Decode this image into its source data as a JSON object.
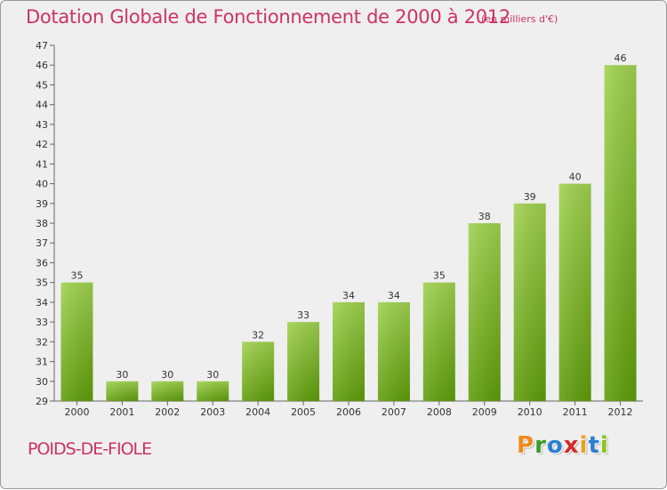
{
  "header": {
    "title": "Dotation Globale de Fonctionnement de 2000 à 2012",
    "unit": "(en milliers d'€)"
  },
  "footer": {
    "place": "POIDS-DE-FIOLE",
    "brand_letters": [
      "P",
      "r",
      "o",
      "x",
      "i",
      "t",
      "i"
    ]
  },
  "colors": {
    "title": "#cc3366",
    "bar_top": "#9fd14e",
    "bar_bottom": "#5e9c0a",
    "brand": [
      "#f08a1c",
      "#3a9a2a",
      "#2a7fd4",
      "#d62a2a",
      "#e8a01c",
      "#2a7fd4",
      "#8ac21c"
    ]
  },
  "chart_data": {
    "type": "bar",
    "title": "Dotation Globale de Fonctionnement de 2000 à 2012",
    "subtitle": "(en milliers d'€)",
    "xlabel": "",
    "ylabel": "",
    "categories": [
      "2000",
      "2001",
      "2002",
      "2003",
      "2004",
      "2005",
      "2006",
      "2007",
      "2008",
      "2009",
      "2010",
      "2011",
      "2012"
    ],
    "values": [
      35,
      30,
      30,
      30,
      32,
      33,
      34,
      34,
      35,
      38,
      39,
      40,
      46
    ],
    "ylim": [
      29,
      47
    ],
    "yticks": [
      29,
      30,
      31,
      32,
      33,
      34,
      35,
      36,
      37,
      38,
      39,
      40,
      41,
      42,
      43,
      44,
      45,
      46,
      47
    ],
    "grid": false,
    "legend": "none"
  }
}
